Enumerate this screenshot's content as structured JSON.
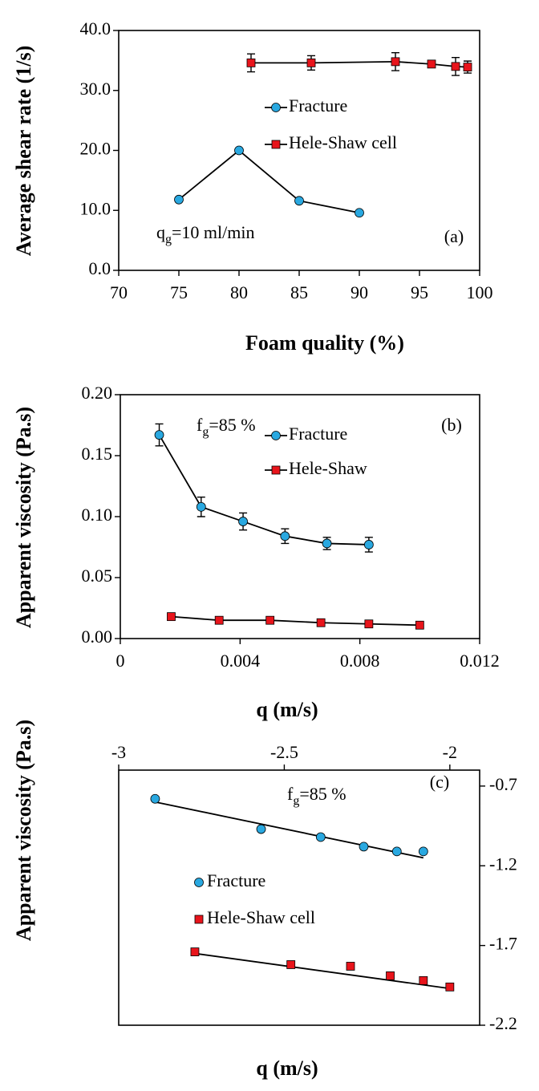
{
  "chart_data": [
    {
      "type": "line",
      "panel_label": "(a)",
      "y_label": "Average shear rate (1/s)",
      "x_label": "Foam quality (%)",
      "annotation": {
        "main": "q",
        "sub": "g",
        "rest": "=10 ml/min"
      },
      "xlim": [
        70,
        100
      ],
      "xticks": [
        70,
        75,
        80,
        85,
        90,
        95,
        100
      ],
      "ylim": [
        0,
        40
      ],
      "yticks": [
        {
          "value": 0,
          "label": "0.0"
        },
        {
          "value": 10,
          "label": "10.0"
        },
        {
          "value": 20,
          "label": "20.0"
        },
        {
          "value": 30,
          "label": "30.0"
        },
        {
          "value": 40,
          "label": "40.0"
        }
      ],
      "series": [
        {
          "name": "Fracture",
          "color": "#29a8e0",
          "marker": "circle",
          "x": [
            75,
            80,
            85,
            90
          ],
          "values": [
            11.8,
            20.0,
            11.6,
            9.6
          ]
        },
        {
          "name": "Hele-Shaw cell",
          "color": "#e8141b",
          "marker": "square",
          "x": [
            81,
            86,
            93,
            96,
            98,
            99
          ],
          "values": [
            34.6,
            34.6,
            34.8,
            34.4,
            34.0,
            33.9
          ],
          "errors": [
            1.5,
            1.2,
            1.5,
            0.6,
            1.5,
            1.0
          ]
        }
      ]
    },
    {
      "type": "line",
      "panel_label": "(b)",
      "y_label": "Apparent viscosity (Pa.s)",
      "x_label": "q (m/s)",
      "annotation": {
        "main": "f",
        "sub": "g",
        "rest": "=85 %"
      },
      "xlim": [
        0,
        0.012
      ],
      "xticks": [
        0,
        0.004,
        0.008,
        0.012
      ],
      "ylim": [
        0,
        0.2
      ],
      "yticks": [
        {
          "value": 0,
          "label": "0.00"
        },
        {
          "value": 0.05,
          "label": "0.05"
        },
        {
          "value": 0.1,
          "label": "0.10"
        },
        {
          "value": 0.15,
          "label": "0.15"
        },
        {
          "value": 0.2,
          "label": "0.20"
        }
      ],
      "series": [
        {
          "name": "Fracture",
          "color": "#29a8e0",
          "marker": "circle",
          "x": [
            0.0013,
            0.0027,
            0.0041,
            0.0055,
            0.0069,
            0.0083
          ],
          "values": [
            0.167,
            0.108,
            0.096,
            0.084,
            0.078,
            0.077
          ],
          "errors": [
            0.009,
            0.008,
            0.007,
            0.006,
            0.005,
            0.006
          ]
        },
        {
          "name": "Hele-Shaw",
          "color": "#e8141b",
          "marker": "square",
          "x": [
            0.0017,
            0.0033,
            0.005,
            0.0067,
            0.0083,
            0.01
          ],
          "values": [
            0.018,
            0.015,
            0.015,
            0.013,
            0.012,
            0.011
          ]
        }
      ]
    },
    {
      "type": "scatter",
      "panel_label": "(c)",
      "y_label": "Apparent viscosity (Pa.s)",
      "x_label": "q (m/s)",
      "annotation": {
        "main": "f",
        "sub": "g",
        "rest": "=85 %"
      },
      "x_axis_position": "top",
      "y_axis_position": "right",
      "xlim": [
        -3,
        -1.91
      ],
      "xticks": [
        -3,
        -2.5,
        -2
      ],
      "ylim": [
        -2.2,
        -0.6
      ],
      "yticks": [
        -2.2,
        -1.7,
        -1.2,
        -0.7
      ],
      "series": [
        {
          "name": "Fracture",
          "color": "#29a8e0",
          "marker": "circle",
          "x": [
            -2.89,
            -2.57,
            -2.39,
            -2.26,
            -2.16,
            -2.08
          ],
          "values": [
            -0.78,
            -0.97,
            -1.02,
            -1.08,
            -1.11,
            -1.11
          ],
          "fit": {
            "x": [
              -2.89,
              -2.08
            ],
            "y": [
              -0.8,
              -1.15
            ]
          }
        },
        {
          "name": "Hele-Shaw cell",
          "color": "#e8141b",
          "marker": "square",
          "x": [
            -2.77,
            -2.48,
            -2.3,
            -2.18,
            -2.08,
            -2.0
          ],
          "values": [
            -1.74,
            -1.82,
            -1.83,
            -1.89,
            -1.92,
            -1.96
          ],
          "fit": {
            "x": [
              -2.77,
              -2.0
            ],
            "y": [
              -1.75,
              -1.97
            ]
          }
        }
      ]
    }
  ]
}
